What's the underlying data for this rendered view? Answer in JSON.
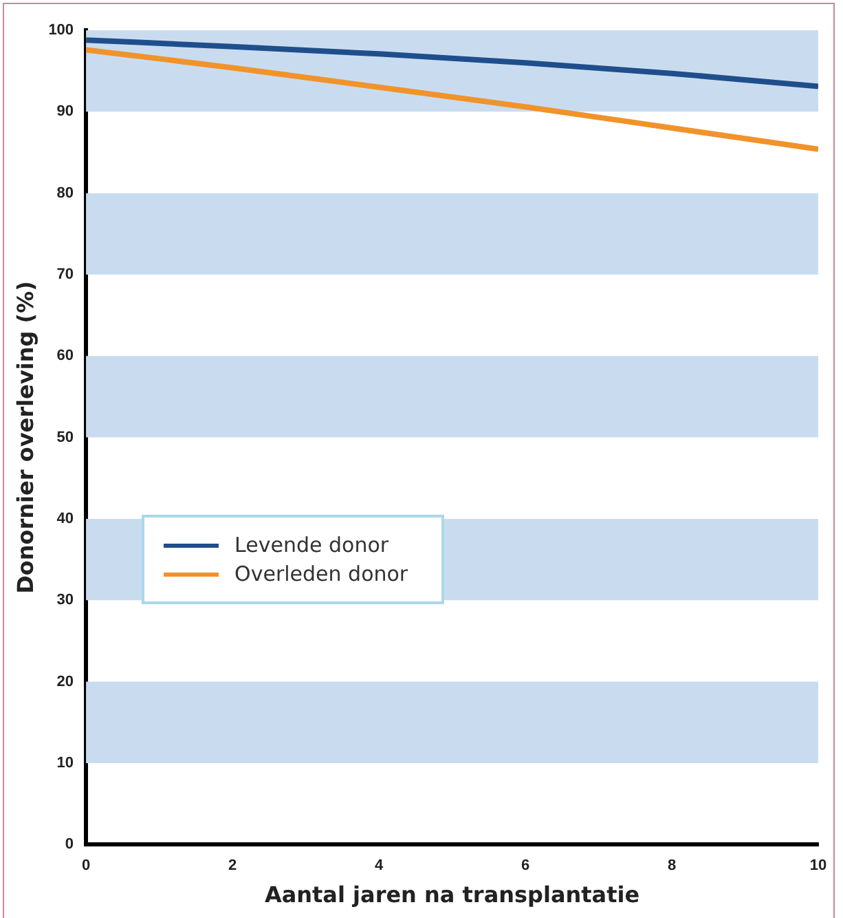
{
  "chart_data": {
    "type": "line",
    "xlabel": "Aantal jaren na transplantatie",
    "ylabel": "Donornier overleving (%)",
    "x": [
      0,
      2,
      4,
      6,
      8,
      10
    ],
    "series": [
      {
        "name": "Levende donor",
        "color": "#1f4e8c",
        "values": [
          98.8,
          98.0,
          97.1,
          96.0,
          94.7,
          93.1
        ]
      },
      {
        "name": "Overleden donor",
        "color": "#f0932b",
        "values": [
          97.6,
          95.4,
          93.0,
          90.6,
          88.0,
          85.4
        ]
      }
    ],
    "xlim": [
      0,
      10
    ],
    "xticks": [
      0,
      2,
      4,
      6,
      8,
      10
    ],
    "ylim": [
      0,
      100
    ],
    "yticks": [
      0,
      10,
      20,
      30,
      40,
      50,
      60,
      70,
      80,
      90,
      100
    ],
    "bands": [
      {
        "axis": "y",
        "from": 10,
        "to": 20,
        "color": "#c9dcef"
      },
      {
        "axis": "y",
        "from": 30,
        "to": 40,
        "color": "#c9dcef"
      },
      {
        "axis": "y",
        "from": 50,
        "to": 60,
        "color": "#c9dcef"
      },
      {
        "axis": "y",
        "from": 70,
        "to": 80,
        "color": "#c9dcef"
      },
      {
        "axis": "y",
        "from": 90,
        "to": 100,
        "color": "#c9dcef"
      }
    ],
    "legend": "left",
    "marker": "none",
    "line_style": "solid"
  }
}
